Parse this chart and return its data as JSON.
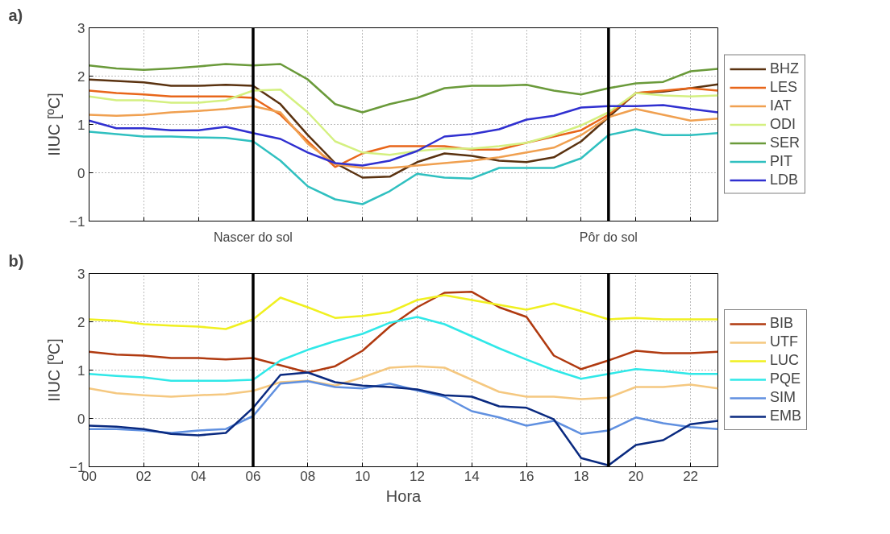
{
  "chart_data": [
    {
      "type": "line",
      "title": "a)",
      "ylabel": "IIUC [ºC]",
      "x": [
        0,
        1,
        2,
        3,
        4,
        5,
        6,
        7,
        8,
        9,
        10,
        11,
        12,
        13,
        14,
        15,
        16,
        17,
        18,
        19,
        20,
        21,
        22,
        23
      ],
      "xlim": [
        0,
        23
      ],
      "ylim": [
        -1,
        3
      ],
      "yticks": [
        -1,
        0,
        1,
        2,
        3
      ],
      "xticks": [
        {
          "value": 0,
          "label": null
        },
        {
          "value": 2,
          "label": null
        },
        {
          "value": 4,
          "label": null
        },
        {
          "value": 6,
          "label": null
        },
        {
          "value": 8,
          "label": null
        },
        {
          "value": 10,
          "label": null
        },
        {
          "value": 12,
          "label": null
        },
        {
          "value": 14,
          "label": null
        },
        {
          "value": 16,
          "label": null
        },
        {
          "value": 18,
          "label": null
        },
        {
          "value": 20,
          "label": null
        },
        {
          "value": 22,
          "label": null
        }
      ],
      "tick_labels": "y",
      "grid": true,
      "legend": "right",
      "ref_lines": [
        {
          "axis": "x",
          "value": 6,
          "label": "Nascer do sol",
          "color": "#000000"
        },
        {
          "axis": "x",
          "value": 19,
          "label": "Pôr do sol",
          "color": "#000000"
        }
      ],
      "series": [
        {
          "name": "BHZ",
          "color": "#5a3210",
          "values": [
            1.93,
            1.9,
            1.87,
            1.8,
            1.8,
            1.82,
            1.8,
            1.42,
            0.78,
            0.2,
            -0.1,
            -0.08,
            0.22,
            0.4,
            0.35,
            0.25,
            0.22,
            0.32,
            0.65,
            1.15,
            1.65,
            1.68,
            1.75,
            1.83
          ]
        },
        {
          "name": "LES",
          "color": "#e8661a",
          "values": [
            1.7,
            1.65,
            1.62,
            1.58,
            1.58,
            1.58,
            1.55,
            1.2,
            0.65,
            0.12,
            0.4,
            0.55,
            0.55,
            0.55,
            0.48,
            0.48,
            0.62,
            0.75,
            0.88,
            1.2,
            1.65,
            1.7,
            1.75,
            1.7
          ]
        },
        {
          "name": "IAT",
          "color": "#f0a050",
          "values": [
            1.2,
            1.18,
            1.2,
            1.25,
            1.28,
            1.32,
            1.38,
            1.25,
            0.6,
            0.18,
            0.1,
            0.1,
            0.15,
            0.2,
            0.25,
            0.32,
            0.42,
            0.52,
            0.78,
            1.15,
            1.32,
            1.2,
            1.08,
            1.12
          ]
        },
        {
          "name": "ODI",
          "color": "#d4f080",
          "values": [
            1.58,
            1.5,
            1.5,
            1.45,
            1.45,
            1.5,
            1.7,
            1.72,
            1.25,
            0.65,
            0.42,
            0.37,
            0.45,
            0.5,
            0.5,
            0.55,
            0.62,
            0.78,
            0.98,
            1.25,
            1.65,
            1.6,
            1.58,
            1.6
          ]
        },
        {
          "name": "SER",
          "color": "#6a9a3a",
          "values": [
            2.22,
            2.16,
            2.13,
            2.16,
            2.2,
            2.25,
            2.22,
            2.25,
            1.93,
            1.42,
            1.25,
            1.42,
            1.55,
            1.75,
            1.8,
            1.8,
            1.82,
            1.7,
            1.62,
            1.75,
            1.85,
            1.88,
            2.1,
            2.15
          ]
        },
        {
          "name": "PIT",
          "color": "#30c0c0",
          "values": [
            0.85,
            0.8,
            0.75,
            0.75,
            0.73,
            0.72,
            0.65,
            0.25,
            -0.28,
            -0.55,
            -0.65,
            -0.38,
            -0.02,
            -0.1,
            -0.12,
            0.1,
            0.1,
            0.1,
            0.3,
            0.78,
            0.9,
            0.78,
            0.78,
            0.82
          ]
        },
        {
          "name": "LDB",
          "color": "#3030d0",
          "values": [
            1.08,
            0.92,
            0.92,
            0.88,
            0.88,
            0.95,
            0.82,
            0.7,
            0.42,
            0.2,
            0.15,
            0.25,
            0.45,
            0.75,
            0.8,
            0.9,
            1.1,
            1.18,
            1.35,
            1.38,
            1.38,
            1.4,
            1.32,
            1.25
          ]
        }
      ]
    },
    {
      "type": "line",
      "title": "b)",
      "xlabel": "Hora",
      "ylabel": "IIUC [ºC]",
      "x": [
        0,
        1,
        2,
        3,
        4,
        5,
        6,
        7,
        8,
        9,
        10,
        11,
        12,
        13,
        14,
        15,
        16,
        17,
        18,
        19,
        20,
        21,
        22,
        23
      ],
      "xlim": [
        0,
        23
      ],
      "ylim": [
        -1,
        3
      ],
      "yticks": [
        -1,
        0,
        1,
        2,
        3
      ],
      "xticks": [
        {
          "value": 0,
          "label": "00"
        },
        {
          "value": 2,
          "label": "02"
        },
        {
          "value": 4,
          "label": "04"
        },
        {
          "value": 6,
          "label": "06"
        },
        {
          "value": 8,
          "label": "08"
        },
        {
          "value": 10,
          "label": "10"
        },
        {
          "value": 12,
          "label": "12"
        },
        {
          "value": 14,
          "label": "14"
        },
        {
          "value": 16,
          "label": "16"
        },
        {
          "value": 18,
          "label": "18"
        },
        {
          "value": 20,
          "label": "20"
        },
        {
          "value": 22,
          "label": "22"
        }
      ],
      "grid": true,
      "legend": "right",
      "ref_lines": [
        {
          "axis": "x",
          "value": 6,
          "color": "#000000"
        },
        {
          "axis": "x",
          "value": 19,
          "color": "#000000"
        }
      ],
      "series": [
        {
          "name": "BIB",
          "color": "#b03a10",
          "values": [
            1.38,
            1.32,
            1.3,
            1.25,
            1.25,
            1.22,
            1.25,
            1.1,
            0.95,
            1.08,
            1.4,
            1.9,
            2.3,
            2.6,
            2.62,
            2.3,
            2.1,
            1.3,
            1.02,
            1.2,
            1.4,
            1.35,
            1.35,
            1.38
          ]
        },
        {
          "name": "UTF",
          "color": "#f5c880",
          "values": [
            0.62,
            0.52,
            0.48,
            0.45,
            0.48,
            0.5,
            0.57,
            0.75,
            0.78,
            0.68,
            0.85,
            1.05,
            1.08,
            1.05,
            0.8,
            0.55,
            0.45,
            0.45,
            0.4,
            0.43,
            0.65,
            0.65,
            0.7,
            0.62
          ]
        },
        {
          "name": "LUC",
          "color": "#f0f020",
          "values": [
            2.05,
            2.02,
            1.95,
            1.92,
            1.9,
            1.85,
            2.05,
            2.5,
            2.3,
            2.08,
            2.12,
            2.2,
            2.45,
            2.55,
            2.45,
            2.35,
            2.25,
            2.38,
            2.22,
            2.05,
            2.08,
            2.05,
            2.05,
            2.05
          ]
        },
        {
          "name": "PQE",
          "color": "#30e8e8",
          "values": [
            0.92,
            0.88,
            0.85,
            0.78,
            0.78,
            0.78,
            0.8,
            1.2,
            1.42,
            1.6,
            1.75,
            1.98,
            2.1,
            1.95,
            1.7,
            1.45,
            1.22,
            1.0,
            0.82,
            0.92,
            1.02,
            0.98,
            0.92,
            0.92
          ]
        },
        {
          "name": "SIM",
          "color": "#6090e0",
          "values": [
            -0.22,
            -0.22,
            -0.25,
            -0.3,
            -0.25,
            -0.22,
            0.05,
            0.72,
            0.77,
            0.65,
            0.62,
            0.72,
            0.58,
            0.45,
            0.15,
            0.02,
            -0.15,
            -0.05,
            -0.32,
            -0.25,
            0.02,
            -0.1,
            -0.18,
            -0.22
          ]
        },
        {
          "name": "EMB",
          "color": "#0a2a80",
          "values": [
            -0.15,
            -0.17,
            -0.22,
            -0.32,
            -0.35,
            -0.3,
            0.22,
            0.9,
            0.95,
            0.75,
            0.68,
            0.65,
            0.6,
            0.48,
            0.45,
            0.25,
            0.22,
            -0.02,
            -0.82,
            -0.97,
            -0.55,
            -0.45,
            -0.12,
            -0.05
          ]
        }
      ]
    }
  ]
}
